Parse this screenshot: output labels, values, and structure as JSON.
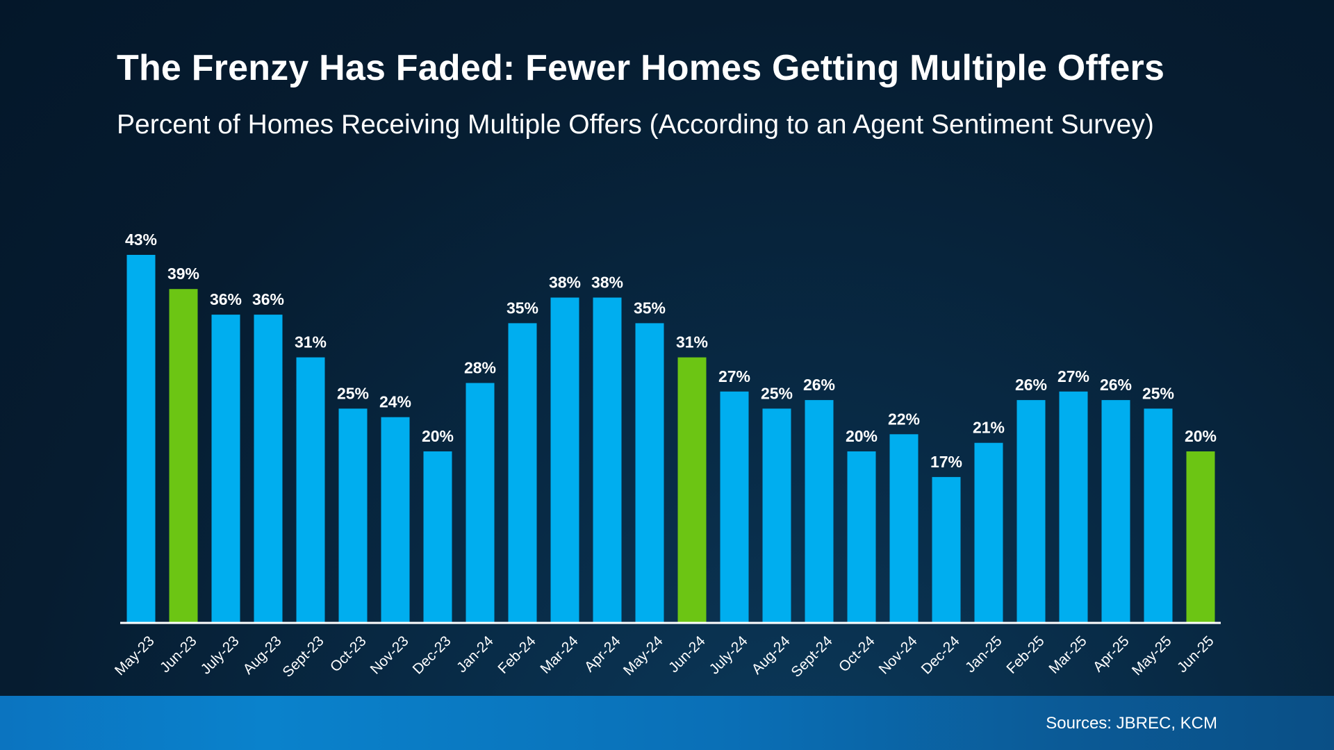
{
  "chart_data": {
    "type": "bar",
    "title": "The Frenzy Has Faded: Fewer Homes Getting Multiple Offers",
    "subtitle": "Percent of Homes Receiving Multiple Offers (According to an Agent Sentiment Survey)",
    "categories": [
      "May-23",
      "Jun-23",
      "July-23",
      "Aug-23",
      "Sept-23",
      "Oct-23",
      "Nov-23",
      "Dec-23",
      "Jan-24",
      "Feb-24",
      "Mar-24",
      "Apr-24",
      "May-24",
      "Jun-24",
      "July-24",
      "Aug-24",
      "Sept-24",
      "Oct-24",
      "Nov-24",
      "Dec-24",
      "Jan-25",
      "Feb-25",
      "Mar-25",
      "Apr-25",
      "May-25",
      "Jun-25"
    ],
    "values": [
      43,
      39,
      36,
      36,
      31,
      25,
      24,
      20,
      28,
      35,
      38,
      38,
      35,
      31,
      27,
      25,
      26,
      20,
      22,
      17,
      21,
      26,
      27,
      26,
      25,
      20
    ],
    "value_labels": [
      "43%",
      "39%",
      "36%",
      "36%",
      "31%",
      "25%",
      "24%",
      "20%",
      "28%",
      "35%",
      "38%",
      "38%",
      "35%",
      "31%",
      "27%",
      "25%",
      "26%",
      "20%",
      "22%",
      "17%",
      "21%",
      "26%",
      "27%",
      "26%",
      "25%",
      "20%"
    ],
    "highlighted": [
      "Jun-23",
      "Jun-24",
      "Jun-25"
    ],
    "ylim": [
      0,
      43
    ],
    "grid": false,
    "legend": "none",
    "colors": {
      "default": "#00aeef",
      "highlight": "#6cc514"
    }
  },
  "footer": {
    "source": "Sources: JBREC, KCM"
  }
}
